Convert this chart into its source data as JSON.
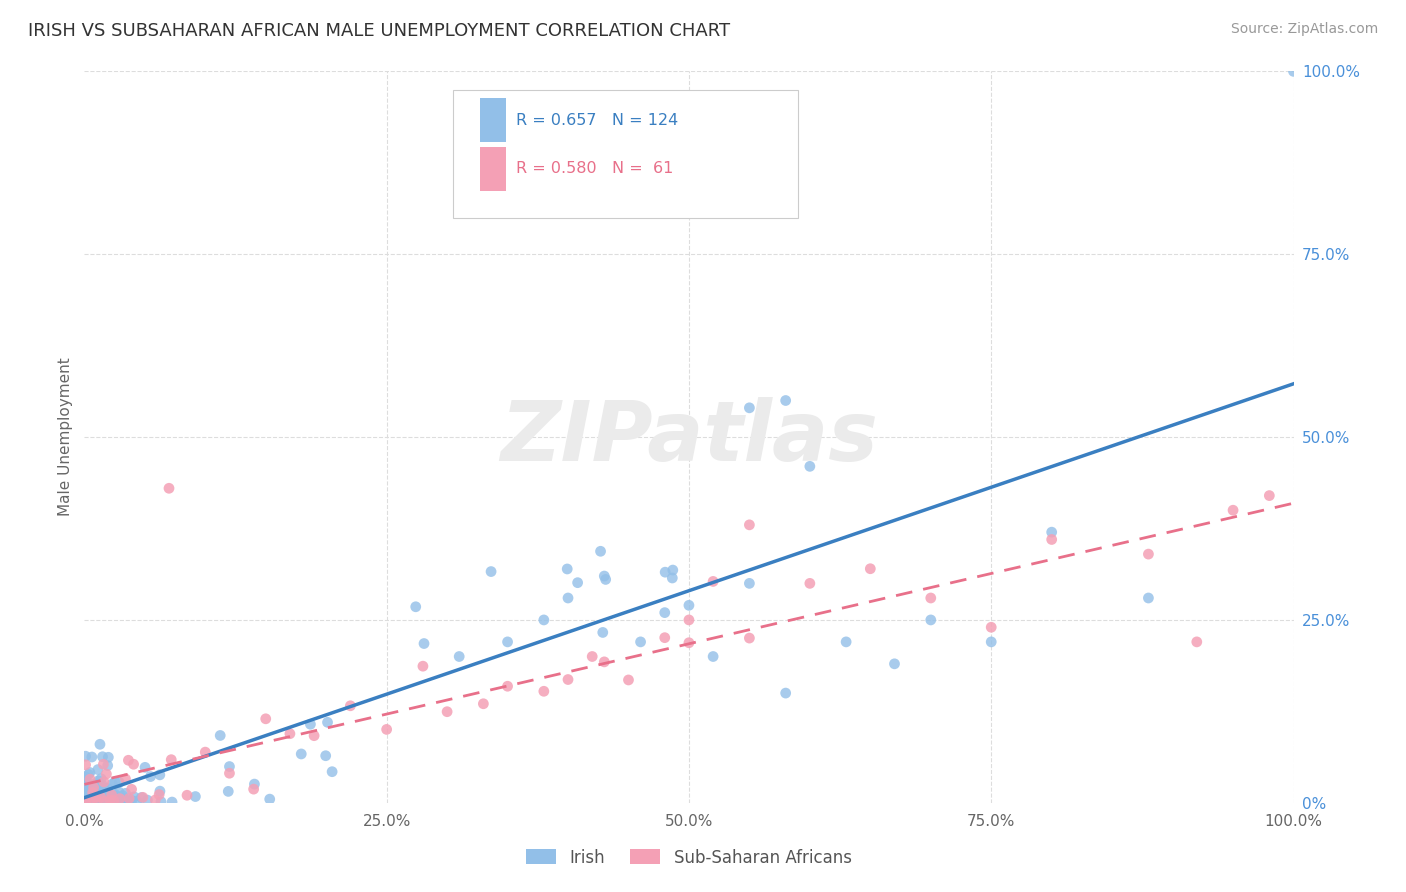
{
  "title": "IRISH VS SUBSAHARAN AFRICAN MALE UNEMPLOYMENT CORRELATION CHART",
  "source": "Source: ZipAtlas.com",
  "ylabel": "Male Unemployment",
  "xlim": [
    0,
    1
  ],
  "ylim": [
    0,
    1
  ],
  "xtick_labels": [
    "0.0%",
    "25.0%",
    "50.0%",
    "75.0%",
    "100.0%"
  ],
  "ytick_labels_right": [
    "0%",
    "25.0%",
    "50.0%",
    "75.0%",
    "100.0%"
  ],
  "irish_color": "#92bfe8",
  "subsaharan_color": "#f4a0b5",
  "irish_line_color": "#3a7fc1",
  "subsaharan_line_color": "#e8708a",
  "watermark_color": "#e8e8e8",
  "irish_R": 0.657,
  "irish_N": 124,
  "subsaharan_R": 0.58,
  "subsaharan_N": 61,
  "legend_label_irish": "Irish",
  "legend_label_subsaharan": "Sub-Saharan Africans",
  "background_color": "#ffffff",
  "grid_color": "#dddddd",
  "irish_line_slope": 0.65,
  "irish_line_intercept": 0.005,
  "sub_line_slope": 0.42,
  "sub_line_intercept": 0.005
}
